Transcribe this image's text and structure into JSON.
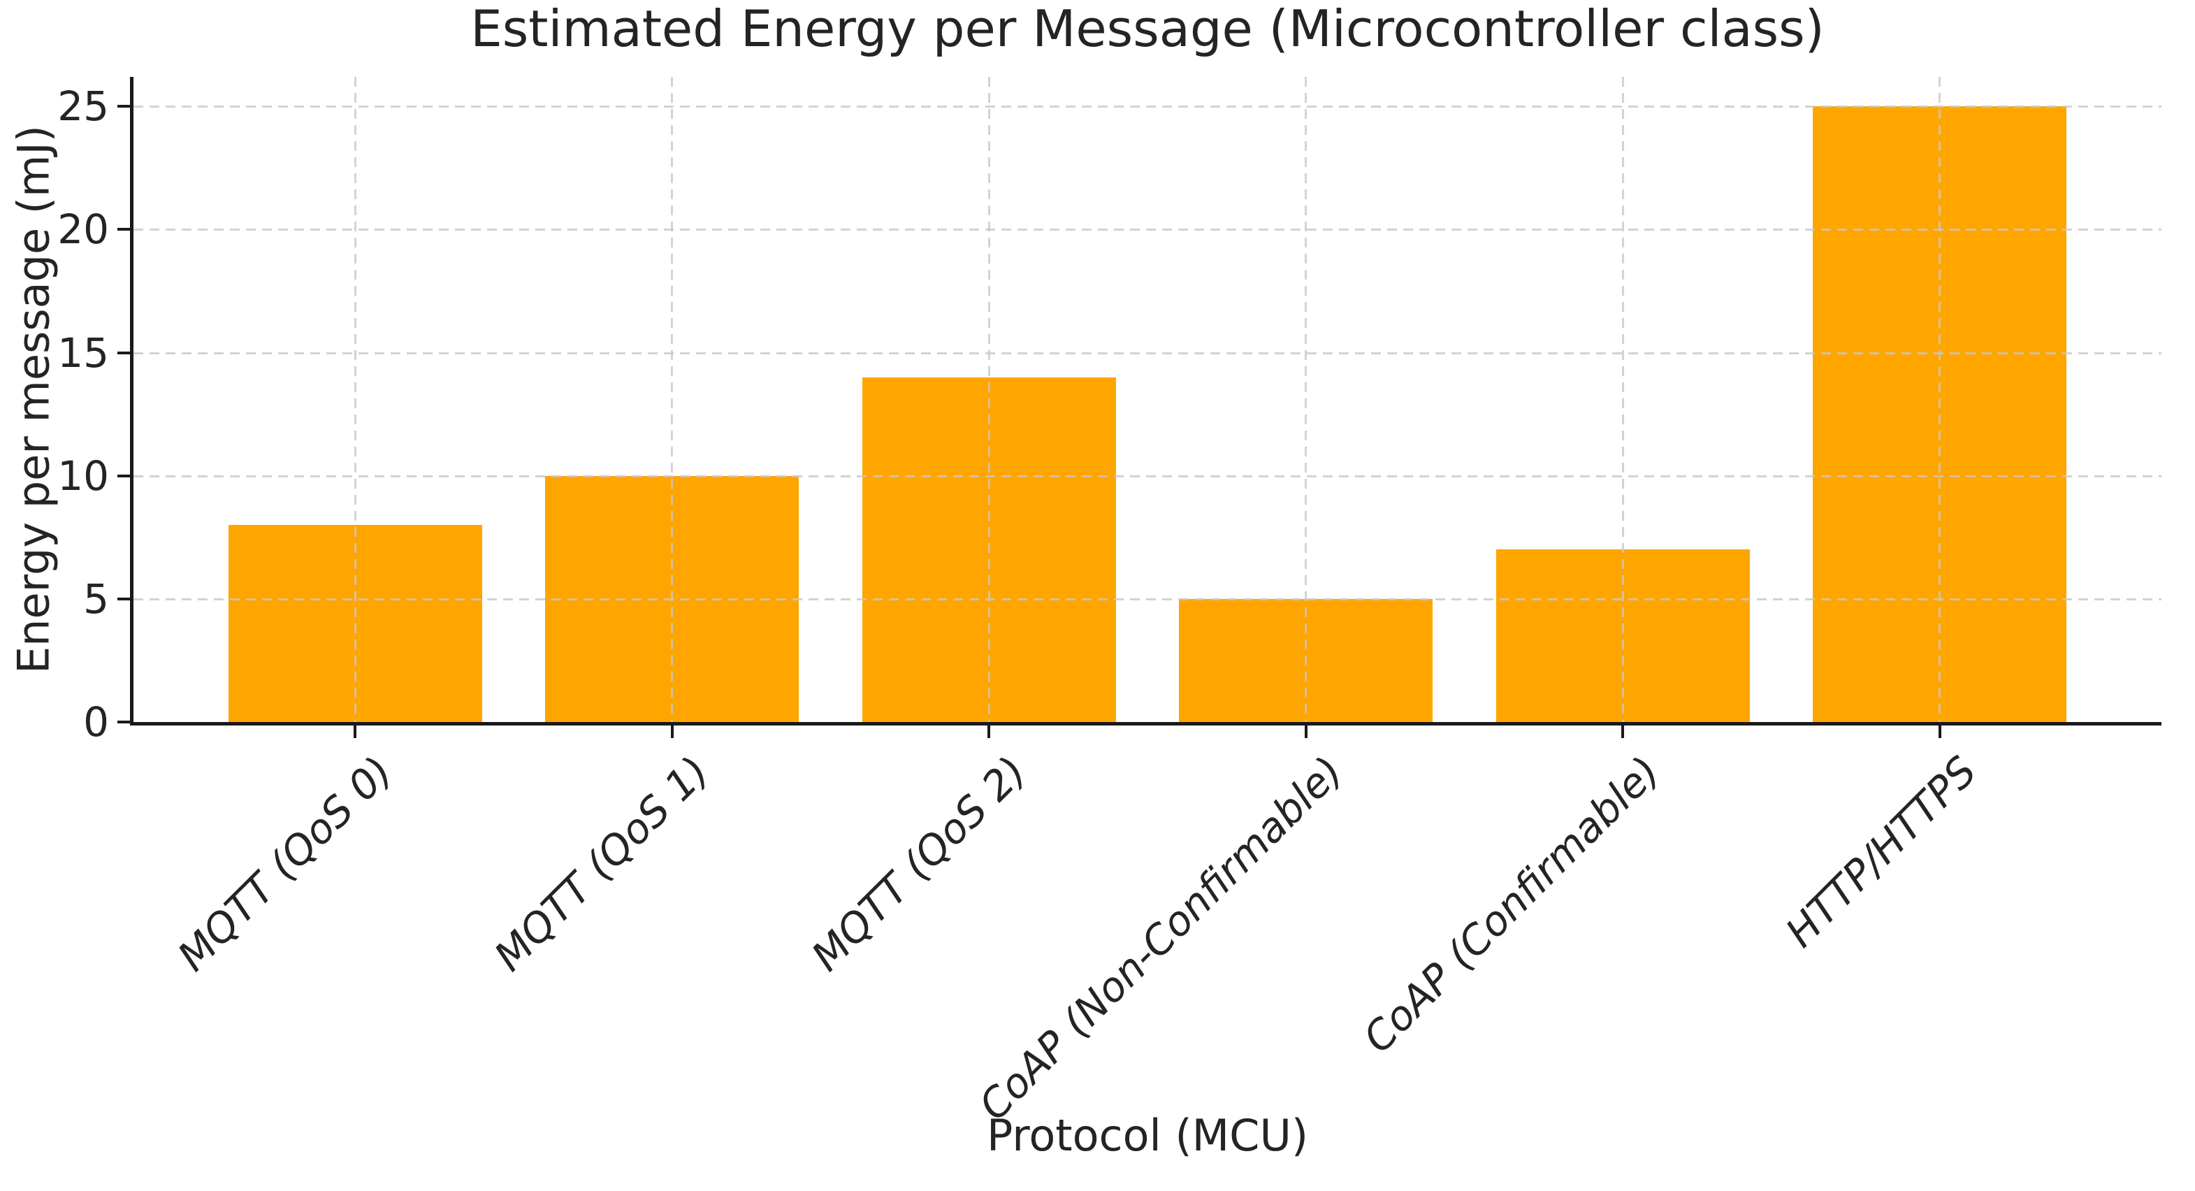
{
  "chart_data": {
    "type": "bar",
    "title": "Estimated Energy per Message (Microcontroller class)",
    "xlabel": "Protocol (MCU)",
    "ylabel": "Energy per message (mJ)",
    "categories": [
      "MQTT (QoS 0)",
      "MQTT (QoS 1)",
      "MQTT (QoS 2)",
      "CoAP (Non-Confirmable)",
      "CoAP (Confirmable)",
      "HTTP/HTTPS"
    ],
    "values": [
      8,
      10,
      14,
      5,
      7,
      25
    ],
    "yticks": [
      0,
      5,
      10,
      15,
      20,
      25
    ],
    "ylim": [
      0,
      26.2
    ],
    "bar_color": "#FFA500",
    "grid": "dashed gray, horizontal and vertical, drawn above bars",
    "grid_color": "#c8c8c8",
    "spine_color": "#1a1a1a",
    "text_color": "#242424",
    "xtick_label_style": "italic, rotated 45deg, anchored right",
    "legend": null
  }
}
